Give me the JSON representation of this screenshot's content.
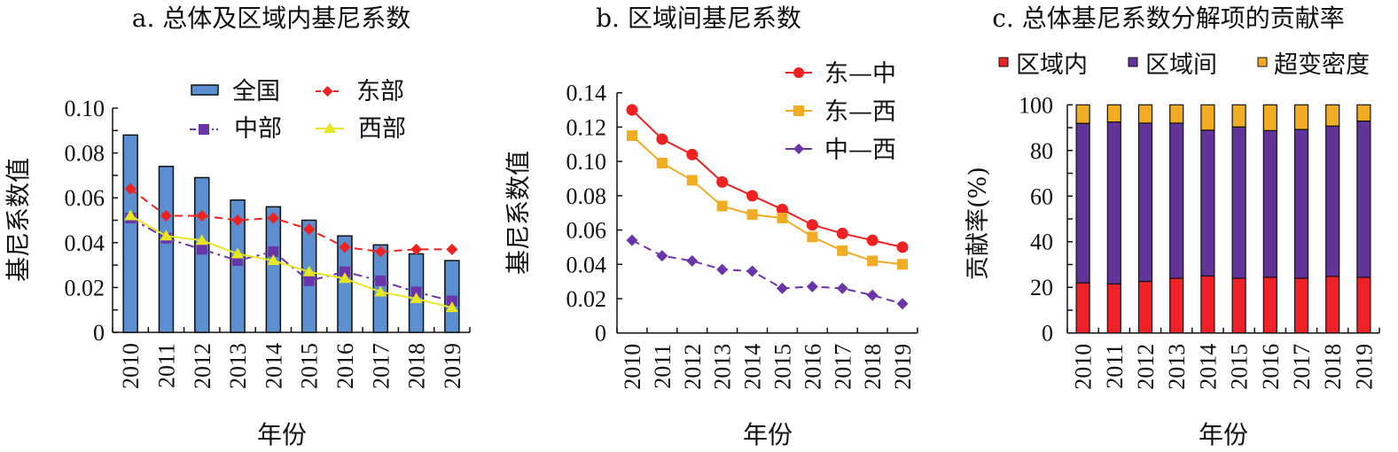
{
  "chart_data": [
    {
      "type": "bar",
      "title": "a. 总体及区域内基尼系数",
      "xlabel": "年份",
      "ylabel": "基尼系数值",
      "ylim": [
        0,
        0.1
      ],
      "yticks": [
        "0",
        "0.02",
        "0.04",
        "0.06",
        "0.08",
        "0.10"
      ],
      "categories": [
        "2010",
        "2011",
        "2012",
        "2013",
        "2014",
        "2015",
        "2016",
        "2017",
        "2018",
        "2019"
      ],
      "legend_position": "top-right",
      "series": [
        {
          "name": "全国",
          "kind": "bar",
          "color": "#5b8fcf",
          "values": [
            0.088,
            0.074,
            0.069,
            0.059,
            0.056,
            0.05,
            0.043,
            0.039,
            0.035,
            0.032
          ]
        },
        {
          "name": "东部",
          "kind": "line",
          "marker": "diamond",
          "dash": "dashed",
          "color": "#ee2222",
          "values": [
            0.064,
            0.052,
            0.052,
            0.05,
            0.051,
            0.046,
            0.038,
            0.036,
            0.037,
            0.037
          ]
        },
        {
          "name": "中部",
          "kind": "line",
          "marker": "square",
          "dash": "dashdot",
          "color": "#6a35a8",
          "values": [
            0.051,
            0.042,
            0.037,
            0.032,
            0.036,
            0.023,
            0.027,
            0.023,
            0.018,
            0.014
          ]
        },
        {
          "name": "西部",
          "kind": "line",
          "marker": "triangle",
          "dash": "solid",
          "color": "#e6e622",
          "values": [
            0.052,
            0.043,
            0.041,
            0.035,
            0.032,
            0.027,
            0.024,
            0.018,
            0.015,
            0.011
          ]
        }
      ]
    },
    {
      "type": "line",
      "title": "b. 区域间基尼系数",
      "xlabel": "年份",
      "ylabel": "基尼系数值",
      "ylim": [
        0,
        0.14
      ],
      "yticks": [
        "0",
        "0.02",
        "0.04",
        "0.06",
        "0.08",
        "0.10",
        "0.12",
        "0.14"
      ],
      "categories": [
        "2010",
        "2011",
        "2012",
        "2013",
        "2014",
        "2015",
        "2016",
        "2017",
        "2018",
        "2019"
      ],
      "legend_position": "top-right",
      "series": [
        {
          "name": "东—中",
          "marker": "circle",
          "dash": "solid",
          "color": "#ee2222",
          "values": [
            0.13,
            0.113,
            0.104,
            0.088,
            0.08,
            0.072,
            0.063,
            0.058,
            0.054,
            0.05
          ]
        },
        {
          "name": "东—西",
          "marker": "square",
          "dash": "solid",
          "color": "#f0ac22",
          "values": [
            0.115,
            0.099,
            0.089,
            0.074,
            0.069,
            0.067,
            0.056,
            0.048,
            0.042,
            0.04
          ]
        },
        {
          "name": "中—西",
          "marker": "diamond",
          "dash": "dashed",
          "color": "#6a35a8",
          "values": [
            0.054,
            0.045,
            0.042,
            0.037,
            0.036,
            0.026,
            0.027,
            0.026,
            0.022,
            0.017
          ]
        }
      ]
    },
    {
      "type": "bar",
      "stacked": true,
      "title": "c. 总体基尼系数分解项的贡献率",
      "xlabel": "年份",
      "ylabel": "贡献率(%)",
      "ylim": [
        0,
        100
      ],
      "yticks": [
        "0",
        "20",
        "40",
        "60",
        "80",
        "100"
      ],
      "categories": [
        "2010",
        "2011",
        "2012",
        "2013",
        "2014",
        "2015",
        "2016",
        "2017",
        "2018",
        "2019"
      ],
      "legend_position": "top",
      "series": [
        {
          "name": "区域内",
          "color": "#ee2228",
          "values": [
            22.0,
            21.5,
            22.6,
            24.0,
            25.0,
            24.0,
            24.4,
            24.0,
            24.8,
            24.4
          ]
        },
        {
          "name": "区域间",
          "color": "#62349a",
          "values": [
            69.9,
            71.0,
            69.4,
            68.0,
            63.9,
            66.3,
            64.3,
            65.2,
            65.9,
            68.5
          ]
        },
        {
          "name": "超变密度",
          "color": "#f0ac22",
          "values": [
            8.1,
            7.5,
            8.0,
            8.0,
            11.1,
            9.7,
            11.3,
            10.8,
            9.3,
            7.1
          ]
        }
      ]
    }
  ]
}
